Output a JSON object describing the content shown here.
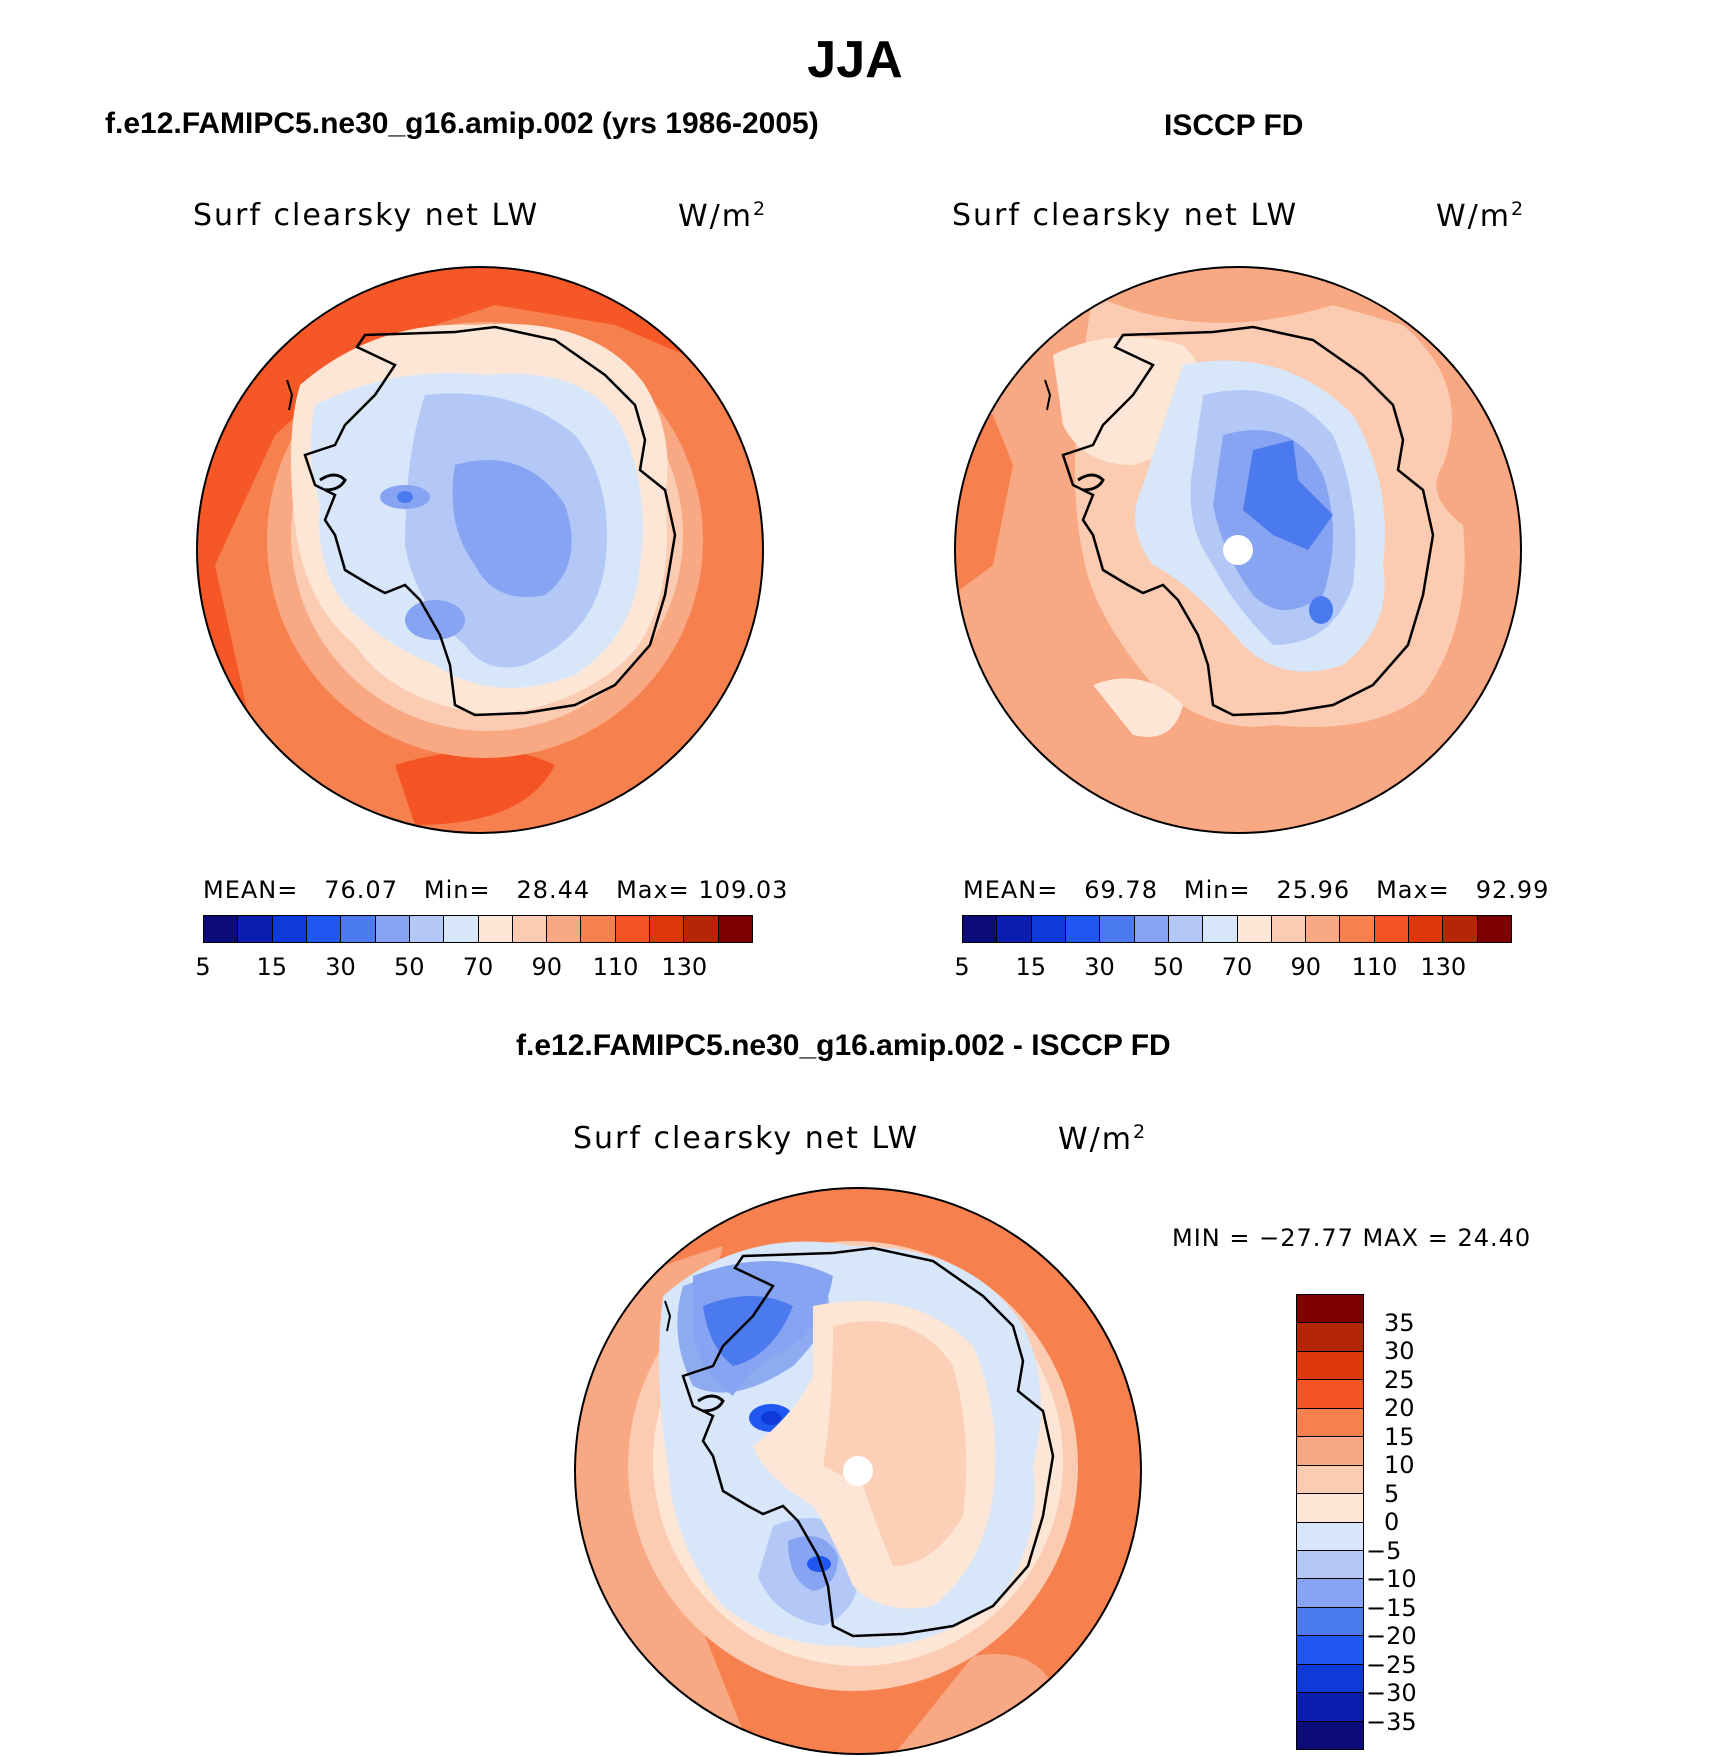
{
  "main_title": "JJA",
  "panels": [
    {
      "id": "model",
      "title": "f.e12.FAMIPC5.ne30_g16.amip.002 (yrs 1986-2005)",
      "variable": "Surf clearsky net LW",
      "units": "W/m",
      "units_exp": "2",
      "stats": {
        "mean_label": "MEAN=",
        "mean": "76.07",
        "min_label": "Min=",
        "min": "28.44",
        "max_label": "Max=",
        "max": "109.03"
      },
      "colorbar_labels": [
        "5",
        "15",
        "30",
        "50",
        "70",
        "90",
        "110",
        "130"
      ]
    },
    {
      "id": "obs",
      "title": "ISCCP FD",
      "variable": "Surf clearsky net LW",
      "units": "W/m",
      "units_exp": "2",
      "stats": {
        "mean_label": "MEAN=",
        "mean": "69.78",
        "min_label": "Min=",
        "min": "25.96",
        "max_label": "Max=",
        "max": "92.99"
      },
      "colorbar_labels": [
        "5",
        "15",
        "30",
        "50",
        "70",
        "90",
        "110",
        "130"
      ]
    },
    {
      "id": "diff",
      "title": "f.e12.FAMIPC5.ne30_g16.amip.002 - ISCCP FD",
      "variable": "Surf clearsky net LW",
      "units": "W/m",
      "units_exp": "2",
      "minmax": "MIN = −27.77 MAX =   24.40",
      "colorbar_labels": [
        "35",
        "30",
        "25",
        "20",
        "15",
        "10",
        "5",
        "0",
        "−5",
        "−10",
        "−15",
        "−20",
        "−25",
        "−30",
        "−35"
      ]
    }
  ],
  "colors": {
    "abs_scale": [
      "#0b0b7a",
      "#0a1fb0",
      "#0e3ad9",
      "#1f57f0",
      "#4b79ee",
      "#86a4f1",
      "#b3c8f6",
      "#d8e6fa",
      "#fde6d6",
      "#fbcbb2",
      "#f8a882",
      "#f7804f",
      "#f45424",
      "#dc380c",
      "#b32606",
      "#7d0000"
    ],
    "diff_scale": [
      "#7d0000",
      "#b32606",
      "#dc380c",
      "#f45424",
      "#f7804f",
      "#f8a882",
      "#fbcbb2",
      "#fde6d6",
      "#d8e6fa",
      "#b3c8f6",
      "#86a4f1",
      "#4b79ee",
      "#1f57f0",
      "#0e3ad9",
      "#0a1fb0",
      "#0b0b7a"
    ]
  }
}
